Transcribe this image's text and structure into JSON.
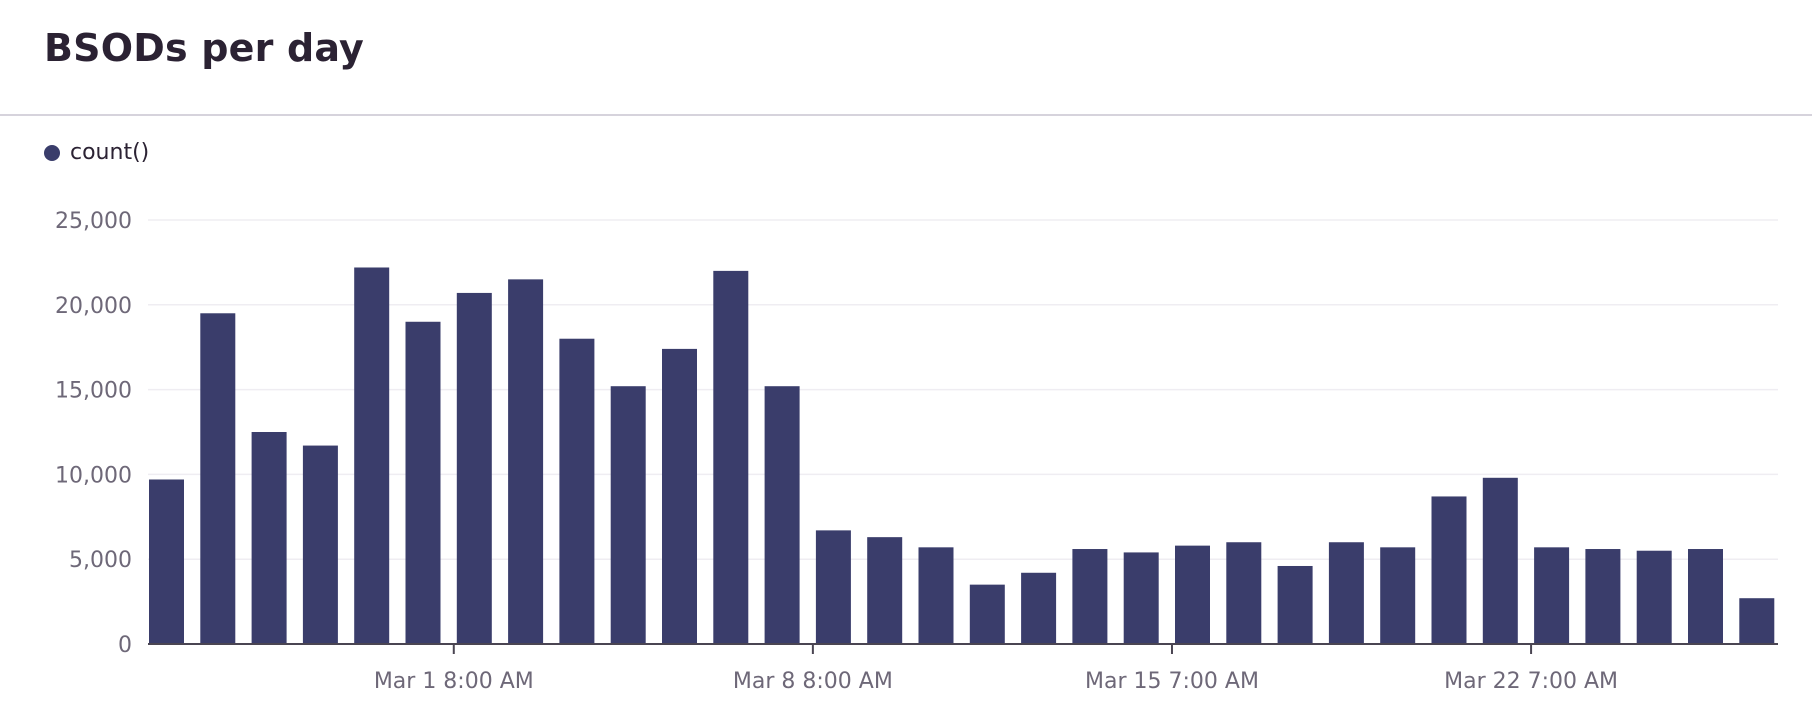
{
  "panel": {
    "title": "BSODs per day"
  },
  "colors": {
    "bar": "#3a3d6b",
    "grid": "#efedf2",
    "axis": "#4a4552",
    "text": "#6e6878"
  },
  "chart_data": {
    "type": "bar",
    "title": "BSODs per day",
    "legend": {
      "placement": "top-left",
      "entries": [
        "count()"
      ]
    },
    "series": [
      {
        "name": "count()",
        "values": [
          9700,
          19500,
          12500,
          11700,
          22200,
          19000,
          20700,
          21500,
          18000,
          15200,
          17400,
          22000,
          15200,
          6700,
          6300,
          5700,
          3500,
          4200,
          5600,
          5400,
          5800,
          6000,
          4600,
          6000,
          5700,
          8700,
          9800,
          5700,
          5600,
          5500,
          5600,
          2700
        ]
      }
    ],
    "ylim": [
      0,
      25000
    ],
    "y_ticks": [
      {
        "value": 0,
        "label": "0"
      },
      {
        "value": 5000,
        "label": "5,000"
      },
      {
        "value": 10000,
        "label": "10,000"
      },
      {
        "value": 15000,
        "label": "15,000"
      },
      {
        "value": 20000,
        "label": "20,000"
      },
      {
        "value": 25000,
        "label": "25,000"
      }
    ],
    "x_ticks": [
      {
        "bar_index": 5.6,
        "label": "Mar 1 8:00 AM"
      },
      {
        "bar_index": 12.6,
        "label": "Mar 8 8:00 AM"
      },
      {
        "bar_index": 19.6,
        "label": "Mar 15 7:00 AM"
      },
      {
        "bar_index": 26.6,
        "label": "Mar 22 7:00 AM"
      }
    ],
    "grid": true,
    "xlabel": "",
    "ylabel": ""
  }
}
